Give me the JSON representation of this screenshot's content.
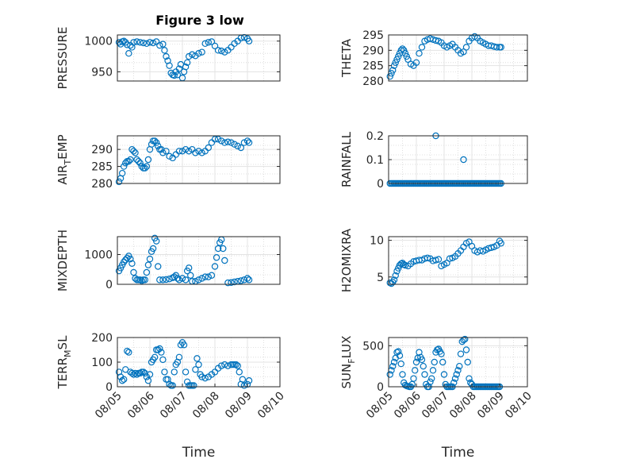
{
  "figure_title": "Figure 3 low",
  "marker_color": "#0072bd",
  "chart_data": [
    {
      "type": "scatter",
      "ylabel": "PRESSURE",
      "ylabel_sub": "",
      "ylabel_tail": "",
      "xlabel": "",
      "ylim": [
        935,
        1010
      ],
      "yticks": [
        950,
        1000
      ],
      "xlim": [
        0,
        5
      ],
      "xticks": [],
      "xticklabels": [],
      "grid": true,
      "x": [
        0.05,
        0.1,
        0.15,
        0.2,
        0.25,
        0.3,
        0.35,
        0.4,
        0.45,
        0.5,
        0.6,
        0.7,
        0.8,
        0.9,
        1.0,
        1.1,
        1.2,
        1.3,
        1.4,
        1.45,
        1.5,
        1.55,
        1.6,
        1.65,
        1.7,
        1.75,
        1.8,
        1.85,
        1.9,
        1.95,
        2.0,
        2.05,
        2.1,
        2.15,
        2.2,
        2.3,
        2.4,
        2.5,
        2.6,
        2.7,
        2.8,
        2.9,
        3.0,
        3.1,
        3.2,
        3.3,
        3.4,
        3.5,
        3.6,
        3.7,
        3.8,
        3.9,
        4.0,
        4.05
      ],
      "y": [
        998,
        995,
        999,
        1000,
        998,
        994,
        980,
        993,
        990,
        998,
        999,
        998,
        997,
        996,
        998,
        997,
        999,
        993,
        995,
        985,
        975,
        968,
        960,
        948,
        945,
        944,
        950,
        945,
        955,
        962,
        940,
        950,
        958,
        965,
        975,
        978,
        976,
        980,
        982,
        996,
        998,
        999,
        992,
        985,
        984,
        982,
        985,
        990,
        996,
        1000,
        1005,
        1006,
        1004,
        1000
      ]
    },
    {
      "type": "scatter",
      "ylabel": "THETA",
      "ylabel_sub": "",
      "ylabel_tail": "",
      "xlabel": "",
      "ylim": [
        280,
        295
      ],
      "yticks": [
        280,
        285,
        290,
        295
      ],
      "xlim": [
        0,
        5
      ],
      "xticks": [],
      "xticklabels": [],
      "grid": true,
      "x": [
        0.05,
        0.1,
        0.15,
        0.2,
        0.25,
        0.3,
        0.35,
        0.4,
        0.45,
        0.5,
        0.55,
        0.6,
        0.65,
        0.7,
        0.8,
        0.9,
        1.0,
        1.1,
        1.2,
        1.3,
        1.4,
        1.5,
        1.6,
        1.7,
        1.8,
        1.9,
        2.0,
        2.1,
        2.2,
        2.3,
        2.4,
        2.5,
        2.6,
        2.7,
        2.8,
        2.9,
        3.0,
        3.1,
        3.2,
        3.3,
        3.4,
        3.5,
        3.6,
        3.7,
        3.8,
        3.9,
        4.0,
        4.05
      ],
      "y": [
        281.5,
        282.5,
        283.5,
        285,
        286,
        287,
        288,
        289,
        290,
        290.5,
        290,
        289,
        288,
        287,
        285.5,
        285,
        286,
        289,
        291,
        293,
        293.5,
        293.8,
        293.5,
        293.2,
        293,
        292.5,
        291.5,
        291,
        291.5,
        292,
        291,
        290,
        289,
        289.5,
        291,
        293,
        294,
        294.5,
        294,
        293,
        292.5,
        292,
        291.5,
        291.5,
        291.2,
        291,
        291,
        291
      ]
    },
    {
      "type": "scatter",
      "ylabel": "AIR",
      "ylabel_sub": "T",
      "ylabel_tail": "EMP",
      "xlabel": "",
      "ylim": [
        280,
        294
      ],
      "yticks": [
        280,
        285,
        290
      ],
      "xlim": [
        0,
        5
      ],
      "xticks": [],
      "xticklabels": [],
      "grid": true,
      "x": [
        0.05,
        0.1,
        0.15,
        0.2,
        0.25,
        0.3,
        0.35,
        0.4,
        0.45,
        0.5,
        0.55,
        0.6,
        0.65,
        0.7,
        0.75,
        0.8,
        0.85,
        0.9,
        0.95,
        1.0,
        1.05,
        1.1,
        1.15,
        1.2,
        1.25,
        1.3,
        1.35,
        1.4,
        1.5,
        1.6,
        1.7,
        1.8,
        1.9,
        2.0,
        2.1,
        2.2,
        2.3,
        2.4,
        2.5,
        2.6,
        2.7,
        2.8,
        2.9,
        3.0,
        3.1,
        3.2,
        3.3,
        3.4,
        3.5,
        3.6,
        3.7,
        3.8,
        3.9,
        4.0,
        4.05
      ],
      "y": [
        280.5,
        281.5,
        283,
        285,
        286,
        286.5,
        286.5,
        287,
        290,
        289.5,
        289,
        287,
        286.5,
        286,
        285,
        284.5,
        284.5,
        285,
        287,
        290,
        291.5,
        292.5,
        292.5,
        292,
        291,
        290,
        290,
        289,
        289.5,
        288,
        287.5,
        288.5,
        289.5,
        289.5,
        290,
        289.5,
        290,
        289,
        289.5,
        289,
        289.5,
        290.5,
        292,
        293,
        293,
        292.5,
        292,
        292.2,
        292,
        291.5,
        291,
        290.5,
        292,
        292.5,
        292
      ]
    },
    {
      "type": "scatter",
      "ylabel": "RAINFALL",
      "ylabel_sub": "",
      "ylabel_tail": "",
      "xlabel": "",
      "ylim": [
        0,
        0.2
      ],
      "yticks": [
        0,
        0.1,
        0.2
      ],
      "xlim": [
        0,
        5
      ],
      "xticks": [],
      "xticklabels": [],
      "grid": true,
      "x": [
        0.05,
        0.1,
        0.15,
        0.2,
        0.25,
        0.3,
        0.35,
        0.4,
        0.45,
        0.5,
        0.55,
        0.6,
        0.65,
        0.7,
        0.75,
        0.8,
        0.85,
        0.9,
        0.95,
        1.0,
        1.05,
        1.1,
        1.15,
        1.2,
        1.25,
        1.3,
        1.35,
        1.4,
        1.45,
        1.5,
        1.55,
        1.6,
        1.65,
        1.7,
        1.75,
        1.8,
        1.85,
        1.9,
        1.95,
        2.0,
        2.05,
        2.1,
        2.15,
        2.2,
        2.25,
        2.3,
        2.35,
        2.4,
        2.45,
        2.5,
        2.55,
        2.6,
        2.65,
        2.7,
        2.75,
        2.8,
        2.85,
        2.9,
        2.95,
        3.0,
        3.05,
        3.1,
        3.15,
        3.2,
        3.25,
        3.3,
        3.35,
        3.4,
        3.45,
        3.5,
        3.55,
        3.6,
        3.65,
        3.7,
        3.75,
        3.8,
        3.85,
        3.9,
        3.95,
        4.0,
        4.05,
        1.7,
        2.7
      ],
      "y": [
        0,
        0,
        0,
        0,
        0,
        0,
        0,
        0,
        0,
        0,
        0,
        0,
        0,
        0,
        0,
        0,
        0,
        0,
        0,
        0,
        0,
        0,
        0,
        0,
        0,
        0,
        0,
        0,
        0,
        0,
        0,
        0,
        0,
        0,
        0,
        0,
        0,
        0,
        0,
        0,
        0,
        0,
        0,
        0,
        0,
        0,
        0,
        0,
        0,
        0,
        0,
        0,
        0,
        0,
        0,
        0,
        0,
        0,
        0,
        0,
        0,
        0,
        0,
        0,
        0,
        0,
        0,
        0,
        0,
        0,
        0,
        0,
        0,
        0,
        0,
        0,
        0,
        0,
        0,
        0,
        0,
        0.2,
        0.1
      ]
    },
    {
      "type": "scatter",
      "ylabel": "MIXDEPTH",
      "ylabel_sub": "",
      "ylabel_tail": "",
      "xlabel": "",
      "ylim": [
        0,
        1600
      ],
      "yticks": [
        0,
        1000
      ],
      "xlim": [
        0,
        5
      ],
      "xticks": [],
      "xticklabels": [],
      "grid": true,
      "x": [
        0.05,
        0.1,
        0.15,
        0.2,
        0.25,
        0.3,
        0.35,
        0.4,
        0.45,
        0.5,
        0.55,
        0.6,
        0.65,
        0.7,
        0.75,
        0.8,
        0.85,
        0.9,
        0.95,
        1.0,
        1.05,
        1.1,
        1.15,
        1.2,
        1.25,
        1.3,
        1.4,
        1.5,
        1.6,
        1.7,
        1.75,
        1.8,
        1.85,
        1.9,
        2.0,
        2.1,
        2.15,
        2.2,
        2.25,
        2.3,
        2.4,
        2.5,
        2.6,
        2.7,
        2.8,
        2.9,
        3.0,
        3.05,
        3.1,
        3.15,
        3.2,
        3.25,
        3.3,
        3.4,
        3.5,
        3.6,
        3.7,
        3.8,
        3.9,
        4.0,
        4.05
      ],
      "y": [
        450,
        550,
        650,
        750,
        820,
        880,
        950,
        850,
        700,
        400,
        200,
        150,
        150,
        150,
        120,
        150,
        150,
        400,
        650,
        850,
        1100,
        1200,
        1550,
        1450,
        600,
        150,
        150,
        160,
        180,
        220,
        250,
        300,
        200,
        150,
        200,
        150,
        450,
        550,
        300,
        100,
        100,
        150,
        200,
        250,
        250,
        300,
        600,
        900,
        1200,
        1400,
        1500,
        1200,
        800,
        50,
        60,
        80,
        100,
        120,
        150,
        200,
        150
      ]
    },
    {
      "type": "scatter",
      "ylabel": "H2OMIXRA",
      "ylabel_sub": "",
      "ylabel_tail": "",
      "xlabel": "",
      "ylim": [
        4,
        10.5
      ],
      "yticks": [
        5,
        10
      ],
      "xlim": [
        0,
        5
      ],
      "xticks": [],
      "xticklabels": [],
      "grid": true,
      "x": [
        0.05,
        0.1,
        0.15,
        0.2,
        0.25,
        0.3,
        0.35,
        0.4,
        0.45,
        0.5,
        0.55,
        0.6,
        0.7,
        0.8,
        0.9,
        1.0,
        1.1,
        1.2,
        1.3,
        1.4,
        1.5,
        1.6,
        1.7,
        1.8,
        1.9,
        2.0,
        2.1,
        2.2,
        2.3,
        2.4,
        2.5,
        2.6,
        2.7,
        2.8,
        2.9,
        3.0,
        3.1,
        3.2,
        3.3,
        3.4,
        3.5,
        3.6,
        3.7,
        3.8,
        3.9,
        4.0,
        4.05
      ],
      "y": [
        4.2,
        4.1,
        4.3,
        4.6,
        5.2,
        5.8,
        6.2,
        6.6,
        6.8,
        6.9,
        6.7,
        6.6,
        6.5,
        6.8,
        7.1,
        7.2,
        7.3,
        7.3,
        7.5,
        7.6,
        7.5,
        7.2,
        7.3,
        7.4,
        6.5,
        6.7,
        6.9,
        7.5,
        7.6,
        7.8,
        8.2,
        8.6,
        9.1,
        9.6,
        9.8,
        9.2,
        8.6,
        8.4,
        8.6,
        8.5,
        8.7,
        8.9,
        9.0,
        9.1,
        9.3,
        9.9,
        9.6
      ]
    },
    {
      "type": "scatter",
      "ylabel": "TERR",
      "ylabel_sub": "M",
      "ylabel_tail": "SL",
      "xlabel": "Time",
      "ylim": [
        0,
        200
      ],
      "yticks": [
        0,
        100,
        200
      ],
      "xlim": [
        0,
        5
      ],
      "xticks": [
        0,
        1,
        2,
        3,
        4,
        5
      ],
      "xticklabels": [
        "08/05",
        "08/06",
        "08/07",
        "08/08",
        "08/09",
        "08/10"
      ],
      "grid": true,
      "x": [
        0.05,
        0.1,
        0.15,
        0.2,
        0.25,
        0.3,
        0.35,
        0.4,
        0.45,
        0.5,
        0.55,
        0.6,
        0.65,
        0.7,
        0.75,
        0.8,
        0.85,
        0.9,
        0.95,
        1.0,
        1.05,
        1.1,
        1.15,
        1.2,
        1.25,
        1.3,
        1.35,
        1.4,
        1.45,
        1.5,
        1.55,
        1.6,
        1.65,
        1.7,
        1.75,
        1.8,
        1.85,
        1.9,
        1.95,
        2.0,
        2.05,
        2.1,
        2.15,
        2.2,
        2.25,
        2.3,
        2.35,
        2.4,
        2.45,
        2.5,
        2.55,
        2.6,
        2.7,
        2.8,
        2.9,
        3.0,
        3.1,
        3.2,
        3.3,
        3.4,
        3.5,
        3.55,
        3.6,
        3.65,
        3.7,
        3.75,
        3.8,
        3.85,
        3.9,
        4.0,
        4.05
      ],
      "y": [
        60,
        40,
        25,
        30,
        70,
        145,
        140,
        60,
        55,
        50,
        55,
        50,
        55,
        55,
        60,
        60,
        55,
        40,
        25,
        50,
        100,
        110,
        120,
        150,
        150,
        155,
        140,
        110,
        60,
        30,
        30,
        10,
        5,
        5,
        60,
        90,
        100,
        120,
        170,
        180,
        170,
        60,
        20,
        5,
        5,
        5,
        5,
        70,
        115,
        90,
        50,
        40,
        35,
        40,
        50,
        60,
        75,
        85,
        90,
        85,
        90,
        90,
        90,
        90,
        85,
        60,
        10,
        30,
        5,
        10,
        25
      ]
    },
    {
      "type": "scatter",
      "ylabel": "SUN",
      "ylabel_sub": "F",
      "ylabel_tail": "LUX",
      "xlabel": "Time",
      "ylim": [
        0,
        600
      ],
      "yticks": [
        0,
        500
      ],
      "xlim": [
        0,
        5
      ],
      "xticks": [
        0,
        1,
        2,
        3,
        4,
        5
      ],
      "xticklabels": [
        "08/05",
        "08/06",
        "08/07",
        "08/08",
        "08/09",
        "08/10"
      ],
      "grid": true,
      "x": [
        0.05,
        0.1,
        0.15,
        0.2,
        0.25,
        0.3,
        0.35,
        0.4,
        0.45,
        0.5,
        0.55,
        0.6,
        0.65,
        0.7,
        0.75,
        0.8,
        0.85,
        0.9,
        0.95,
        1.0,
        1.05,
        1.1,
        1.15,
        1.2,
        1.25,
        1.3,
        1.35,
        1.4,
        1.45,
        1.5,
        1.55,
        1.6,
        1.65,
        1.7,
        1.75,
        1.8,
        1.85,
        1.9,
        1.95,
        2.0,
        2.05,
        2.1,
        2.15,
        2.2,
        2.25,
        2.3,
        2.35,
        2.4,
        2.45,
        2.5,
        2.55,
        2.6,
        2.65,
        2.7,
        2.75,
        2.8,
        2.85,
        2.9,
        2.95,
        3.0,
        3.05,
        3.1,
        3.15,
        3.2,
        3.25,
        3.3,
        3.35,
        3.4,
        3.45,
        3.5,
        3.55,
        3.6,
        3.65,
        3.7,
        3.75,
        3.8,
        3.85,
        3.9,
        3.95,
        4.0
      ],
      "y": [
        150,
        200,
        250,
        300,
        350,
        420,
        430,
        380,
        280,
        150,
        50,
        20,
        10,
        5,
        0,
        0,
        30,
        100,
        200,
        300,
        350,
        420,
        360,
        330,
        250,
        150,
        30,
        0,
        0,
        60,
        100,
        200,
        300,
        420,
        450,
        460,
        430,
        400,
        300,
        150,
        30,
        0,
        0,
        0,
        0,
        0,
        50,
        100,
        150,
        200,
        250,
        400,
        550,
        570,
        580,
        450,
        300,
        100,
        50,
        30,
        0,
        0,
        0,
        0,
        0,
        0,
        0,
        0,
        0,
        0,
        0,
        0,
        0,
        0,
        0,
        0,
        0,
        0,
        0,
        0
      ]
    }
  ]
}
